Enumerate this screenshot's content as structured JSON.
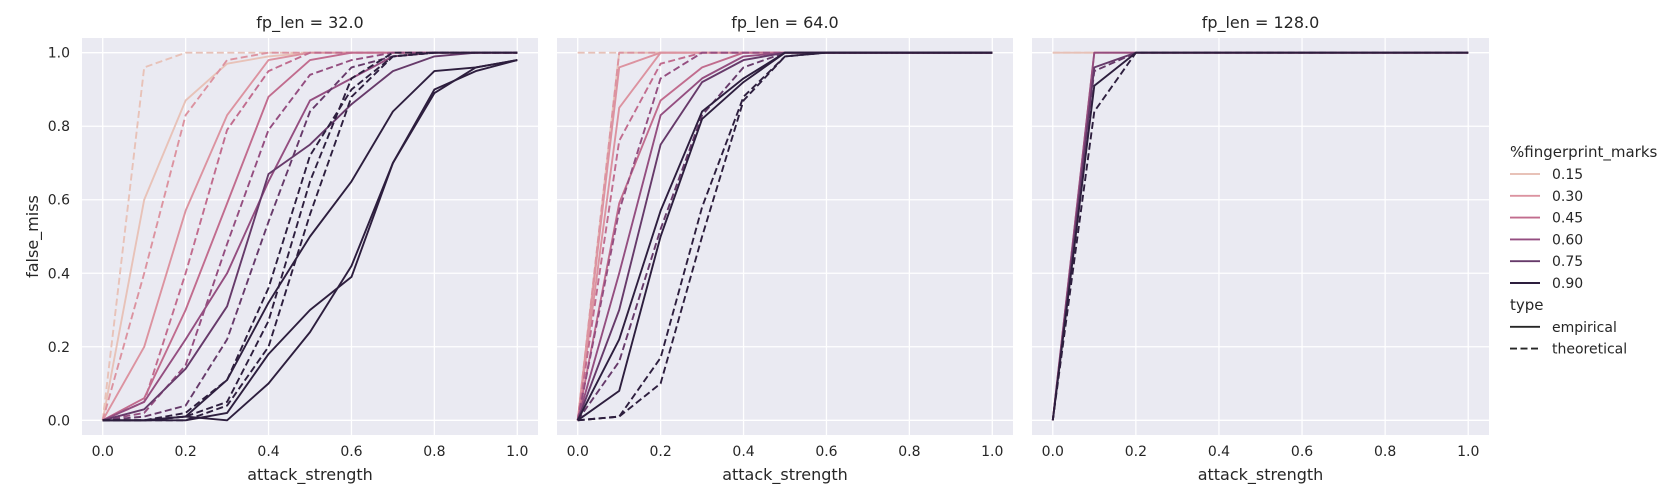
{
  "chart_data": {
    "type": "line",
    "facet_variable": "fp_len",
    "xlabel": "attack_strength",
    "ylabel": "false_miss",
    "xlim": [
      -0.05,
      1.05
    ],
    "ylim": [
      -0.04,
      1.04
    ],
    "x_ticks": [
      "0.0",
      "0.2",
      "0.4",
      "0.6",
      "0.8",
      "1.0"
    ],
    "y_ticks": [
      "0.0",
      "0.2",
      "0.4",
      "0.6",
      "0.8",
      "1.0"
    ],
    "x": [
      0.0,
      0.1,
      0.2,
      0.3,
      0.4,
      0.5,
      0.6,
      0.7,
      0.8,
      0.9,
      1.0
    ],
    "grid": true,
    "legend": {
      "placement": "right",
      "hue_title": "%fingerprint_marks",
      "hue_entries": [
        {
          "label": "0.15",
          "color": "#e8c2b8"
        },
        {
          "label": "0.30",
          "color": "#dc93a0"
        },
        {
          "label": "0.45",
          "color": "#c16c8e"
        },
        {
          "label": "0.60",
          "color": "#944e80"
        },
        {
          "label": "0.75",
          "color": "#663a6a"
        },
        {
          "label": "0.90",
          "color": "#2d1e3e"
        }
      ],
      "style_title": "type",
      "style_entries": [
        {
          "label": "empirical",
          "dash": "solid"
        },
        {
          "label": "theoretical",
          "dash": "dashed"
        }
      ]
    },
    "panels": [
      {
        "title": "fp_len = 32.0",
        "series": [
          {
            "hue": "0.15",
            "type": "empirical",
            "values": [
              0.0,
              0.6,
              0.87,
              0.97,
              0.99,
              1.0,
              1.0,
              1.0,
              1.0,
              1.0,
              1.0
            ]
          },
          {
            "hue": "0.15",
            "type": "theoretical",
            "values": [
              0.0,
              0.96,
              1.0,
              1.0,
              1.0,
              1.0,
              1.0,
              1.0,
              1.0,
              1.0,
              1.0
            ]
          },
          {
            "hue": "0.30",
            "type": "empirical",
            "values": [
              0.0,
              0.2,
              0.57,
              0.83,
              0.98,
              1.0,
              1.0,
              1.0,
              1.0,
              1.0,
              1.0
            ]
          },
          {
            "hue": "0.30",
            "type": "theoretical",
            "values": [
              0.0,
              0.4,
              0.83,
              0.98,
              1.0,
              1.0,
              1.0,
              1.0,
              1.0,
              1.0,
              1.0
            ]
          },
          {
            "hue": "0.45",
            "type": "empirical",
            "values": [
              0.0,
              0.06,
              0.3,
              0.59,
              0.88,
              0.98,
              1.0,
              1.0,
              1.0,
              1.0,
              1.0
            ]
          },
          {
            "hue": "0.45",
            "type": "theoretical",
            "values": [
              0.0,
              0.05,
              0.4,
              0.79,
              0.95,
              1.0,
              1.0,
              1.0,
              1.0,
              1.0,
              1.0
            ]
          },
          {
            "hue": "0.60",
            "type": "empirical",
            "values": [
              0.0,
              0.05,
              0.22,
              0.4,
              0.65,
              0.87,
              0.93,
              0.99,
              1.0,
              1.0,
              1.0
            ]
          },
          {
            "hue": "0.60",
            "type": "theoretical",
            "values": [
              0.0,
              0.02,
              0.15,
              0.48,
              0.79,
              0.94,
              0.98,
              1.0,
              1.0,
              1.0,
              1.0
            ]
          },
          {
            "hue": "0.75",
            "type": "empirical",
            "values": [
              0.0,
              0.03,
              0.14,
              0.31,
              0.67,
              0.75,
              0.86,
              0.95,
              0.99,
              1.0,
              1.0
            ]
          },
          {
            "hue": "0.75",
            "type": "theoretical",
            "values": [
              0.0,
              0.01,
              0.04,
              0.22,
              0.54,
              0.84,
              0.96,
              0.99,
              1.0,
              1.0,
              1.0
            ]
          },
          {
            "hue": "0.90",
            "type": "empirical",
            "values": [
              0.0,
              0.0,
              0.01,
              0.11,
              0.32,
              0.5,
              0.65,
              0.84,
              0.95,
              0.96,
              0.98
            ]
          },
          {
            "hue": "0.90",
            "type": "theoretical",
            "values": [
              0.0,
              0.0,
              0.02,
              0.11,
              0.36,
              0.72,
              0.9,
              0.99,
              1.0,
              1.0,
              1.0
            ]
          },
          {
            "hue": "0.90",
            "type": "empirical",
            "values": [
              0.0,
              0.0,
              0.0,
              0.02,
              0.18,
              0.3,
              0.39,
              0.7,
              0.89,
              0.96,
              0.98
            ]
          },
          {
            "hue": "0.90",
            "type": "theoretical",
            "values": [
              0.0,
              0.0,
              0.01,
              0.05,
              0.27,
              0.65,
              0.93,
              1.0,
              1.0,
              1.0,
              1.0
            ]
          },
          {
            "hue": "0.90",
            "type": "empirical",
            "values": [
              0.0,
              0.0,
              0.01,
              0.0,
              0.1,
              0.24,
              0.42,
              0.7,
              0.9,
              0.95,
              0.98
            ]
          },
          {
            "hue": "0.90",
            "type": "theoretical",
            "values": [
              0.0,
              0.0,
              0.0,
              0.04,
              0.2,
              0.56,
              0.88,
              0.99,
              1.0,
              1.0,
              1.0
            ]
          }
        ]
      },
      {
        "title": "fp_len = 64.0",
        "series": [
          {
            "hue": "0.15",
            "type": "empirical",
            "values": [
              0.0,
              1.0,
              1.0,
              1.0,
              1.0,
              1.0,
              1.0,
              1.0,
              1.0,
              1.0,
              1.0
            ]
          },
          {
            "hue": "0.15",
            "type": "theoretical",
            "values": [
              1.0,
              1.0,
              1.0,
              1.0,
              1.0,
              1.0,
              1.0,
              1.0,
              1.0,
              1.0,
              1.0
            ]
          },
          {
            "hue": "0.30",
            "type": "empirical",
            "values": [
              0.0,
              0.85,
              1.0,
              1.0,
              1.0,
              1.0,
              1.0,
              1.0,
              1.0,
              1.0,
              1.0
            ]
          },
          {
            "hue": "0.30",
            "type": "theoretical",
            "values": [
              0.0,
              1.0,
              1.0,
              1.0,
              1.0,
              1.0,
              1.0,
              1.0,
              1.0,
              1.0,
              1.0
            ]
          },
          {
            "hue": "0.30",
            "type": "empirical",
            "values": [
              0.0,
              0.96,
              1.0,
              1.0,
              1.0,
              1.0,
              1.0,
              1.0,
              1.0,
              1.0,
              1.0
            ]
          },
          {
            "hue": "0.45",
            "type": "empirical",
            "values": [
              0.0,
              0.59,
              0.87,
              0.96,
              1.0,
              1.0,
              1.0,
              1.0,
              1.0,
              1.0,
              1.0
            ]
          },
          {
            "hue": "0.45",
            "type": "theoretical",
            "values": [
              0.0,
              0.76,
              0.97,
              1.0,
              1.0,
              1.0,
              1.0,
              1.0,
              1.0,
              1.0,
              1.0
            ]
          },
          {
            "hue": "0.60",
            "type": "empirical",
            "values": [
              0.0,
              0.4,
              0.83,
              0.93,
              0.99,
              1.0,
              1.0,
              1.0,
              1.0,
              1.0,
              1.0
            ]
          },
          {
            "hue": "0.60",
            "type": "theoretical",
            "values": [
              0.0,
              0.57,
              0.93,
              1.0,
              1.0,
              1.0,
              1.0,
              1.0,
              1.0,
              1.0,
              1.0
            ]
          },
          {
            "hue": "0.75",
            "type": "empirical",
            "values": [
              0.0,
              0.3,
              0.75,
              0.92,
              0.98,
              1.0,
              1.0,
              1.0,
              1.0,
              1.0,
              1.0
            ]
          },
          {
            "hue": "0.75",
            "type": "theoretical",
            "values": [
              0.0,
              0.16,
              0.52,
              0.83,
              0.96,
              1.0,
              1.0,
              1.0,
              1.0,
              1.0,
              1.0
            ]
          },
          {
            "hue": "0.90",
            "type": "empirical",
            "values": [
              0.0,
              0.22,
              0.57,
              0.84,
              0.93,
              1.0,
              1.0,
              1.0,
              1.0,
              1.0,
              1.0
            ]
          },
          {
            "hue": "0.90",
            "type": "theoretical",
            "values": [
              0.0,
              0.01,
              0.17,
              0.58,
              0.88,
              0.99,
              1.0,
              1.0,
              1.0,
              1.0,
              1.0
            ]
          },
          {
            "hue": "0.90",
            "type": "empirical",
            "values": [
              0.0,
              0.08,
              0.5,
              0.82,
              0.92,
              1.0,
              1.0,
              1.0,
              1.0,
              1.0,
              1.0
            ]
          },
          {
            "hue": "0.90",
            "type": "theoretical",
            "values": [
              0.0,
              0.01,
              0.1,
              0.5,
              0.87,
              0.99,
              1.0,
              1.0,
              1.0,
              1.0,
              1.0
            ]
          }
        ]
      },
      {
        "title": "fp_len = 128.0",
        "series": [
          {
            "hue": "0.15",
            "type": "empirical",
            "values": [
              1.0,
              1.0,
              1.0,
              1.0,
              1.0,
              1.0,
              1.0,
              1.0,
              1.0,
              1.0,
              1.0
            ]
          },
          {
            "hue": "0.15",
            "type": "theoretical",
            "values": [
              1.0,
              1.0,
              1.0,
              1.0,
              1.0,
              1.0,
              1.0,
              1.0,
              1.0,
              1.0,
              1.0
            ]
          },
          {
            "hue": "0.30",
            "type": "empirical",
            "values": [
              0.0,
              1.0,
              1.0,
              1.0,
              1.0,
              1.0,
              1.0,
              1.0,
              1.0,
              1.0,
              1.0
            ]
          },
          {
            "hue": "0.30",
            "type": "theoretical",
            "values": [
              0.0,
              1.0,
              1.0,
              1.0,
              1.0,
              1.0,
              1.0,
              1.0,
              1.0,
              1.0,
              1.0
            ]
          },
          {
            "hue": "0.60",
            "type": "empirical",
            "values": [
              0.0,
              1.0,
              1.0,
              1.0,
              1.0,
              1.0,
              1.0,
              1.0,
              1.0,
              1.0,
              1.0
            ]
          },
          {
            "hue": "0.75",
            "type": "empirical",
            "values": [
              0.0,
              0.96,
              1.0,
              1.0,
              1.0,
              1.0,
              1.0,
              1.0,
              1.0,
              1.0,
              1.0
            ]
          },
          {
            "hue": "0.75",
            "type": "theoretical",
            "values": [
              0.0,
              0.95,
              1.0,
              1.0,
              1.0,
              1.0,
              1.0,
              1.0,
              1.0,
              1.0,
              1.0
            ]
          },
          {
            "hue": "0.90",
            "type": "empirical",
            "values": [
              0.0,
              0.91,
              1.0,
              1.0,
              1.0,
              1.0,
              1.0,
              1.0,
              1.0,
              1.0,
              1.0
            ]
          },
          {
            "hue": "0.90",
            "type": "theoretical",
            "values": [
              0.0,
              0.84,
              1.0,
              1.0,
              1.0,
              1.0,
              1.0,
              1.0,
              1.0,
              1.0,
              1.0
            ]
          }
        ]
      }
    ]
  }
}
